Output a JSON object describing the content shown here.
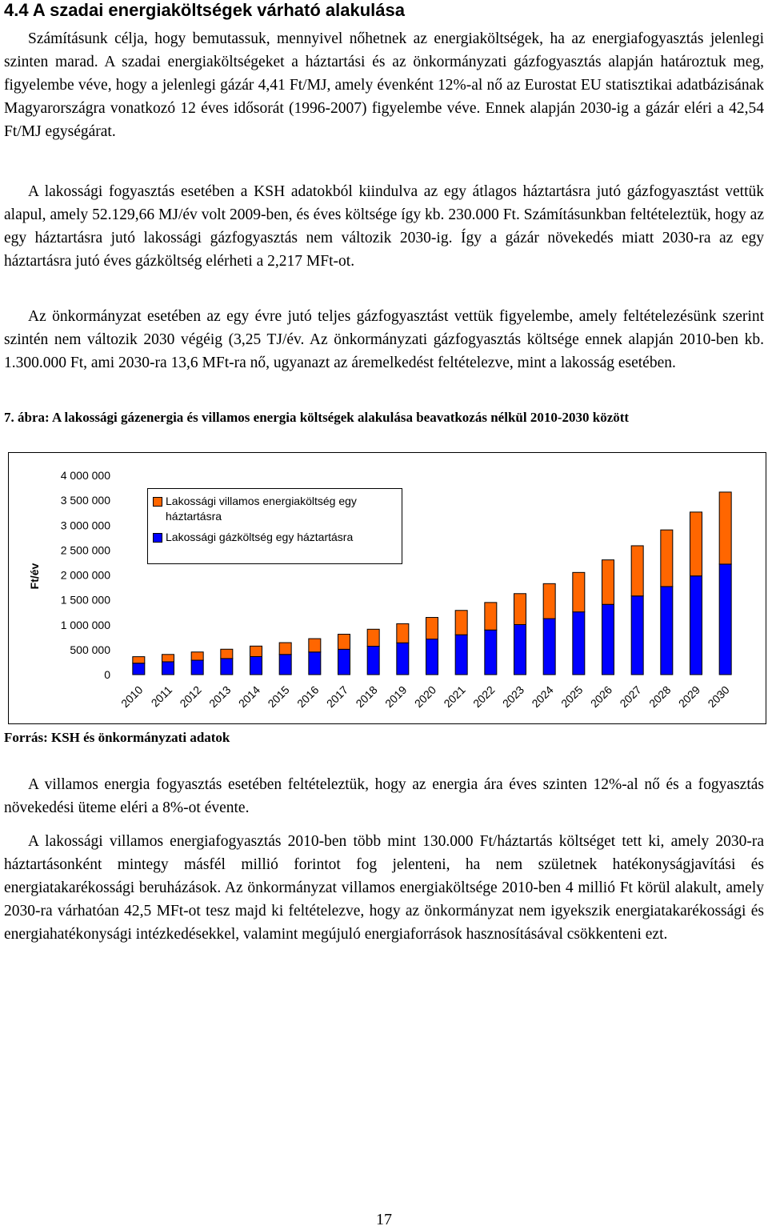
{
  "heading": "4.4 A szadai energiaköltségek várható alakulása",
  "paragraphs": [
    "Számításunk célja, hogy bemutassuk, mennyivel nőhetnek az energiaköltségek, ha az energiafogyasztás jelenlegi szinten marad. A szadai energiaköltségeket a háztartási és az önkormányzati gázfogyasztás alapján határoztuk meg, figyelembe véve, hogy a jelenlegi gázár 4,41 Ft/MJ, amely évenként 12%-al nő az Eurostat EU statisztikai adatbázisának Magyarországra vonatkozó 12 éves idősorát (1996-2007) figyelembe véve. Ennek alapján 2030-ig a gázár eléri a 42,54 Ft/MJ egységárat.",
    "A lakossági fogyasztás esetében a KSH adatokból kiindulva az egy átlagos háztartásra jutó gázfogyasztást vettük alapul, amely 52.129,66 MJ/év volt 2009-ben, és éves költsége így kb. 230.000 Ft. Számításunkban feltételeztük, hogy az egy háztartásra jutó lakossági gázfogyasztás nem változik 2030-ig. Így a gázár növekedés miatt 2030-ra az egy háztartásra jutó éves gázköltség elérheti a 2,217 MFt-ot.",
    "Az önkormányzat esetében az egy évre jutó teljes gázfogyasztást vettük figyelembe, amely feltételezésünk szerint szintén nem változik 2030 végéig (3,25 TJ/év. Az önkormányzati gázfogyasztás költsége ennek alapján 2010-ben kb. 1.300.000 Ft, ami 2030-ra 13,6 MFt-ra nő, ugyanazt az áremelkedést feltételezve, mint a lakosság esetében.",
    "A villamos energia fogyasztás esetében feltételeztük, hogy az energia ára éves szinten 12%-al nő és a fogyasztás növekedési üteme eléri a 8%-ot évente.",
    "A lakossági villamos energiafogyasztás 2010-ben több mint 130.000 Ft/háztartás költséget tett ki, amely 2030-ra háztartásonként mintegy másfél millió forintot fog jelenteni, ha nem születnek hatékonyságjavítási és energiatakarékossági beruházások. Az önkormányzat villamos energiaköltsége 2010-ben 4 millió Ft körül alakult, amely 2030-ra várhatóan 42,5 MFt-ot tesz majd ki feltételezve, hogy az önkormányzat nem igyekszik energiatakarékossági és energiahatékonysági intézkedésekkel, valamint megújuló energiaforrások hasznosításával csökkenteni ezt."
  ],
  "figure_caption": "7. ábra: A lakossági gázenergia és villamos energia költségek alakulása beavatkozás nélkül 2010-2030 között",
  "source": "Forrás: KSH és önkormányzati adatok",
  "page_number": "17",
  "chart_data": {
    "type": "stacked-bar",
    "y_label": "Ft/év",
    "categories": [
      "2010",
      "2011",
      "2012",
      "2013",
      "2014",
      "2015",
      "2016",
      "2017",
      "2018",
      "2019",
      "2020",
      "2021",
      "2022",
      "2023",
      "2024",
      "2025",
      "2026",
      "2027",
      "2028",
      "2029",
      "2030"
    ],
    "series": [
      {
        "name": "Lakossági gázköltség egy háztartásra",
        "color": "#0000ff",
        "values": [
          230000,
          258000,
          289000,
          323000,
          362000,
          405000,
          454000,
          509000,
          570000,
          638000,
          714000,
          800000,
          896000,
          1004000,
          1124000,
          1259000,
          1410000,
          1579000,
          1768000,
          1981000,
          2218000
        ]
      },
      {
        "name": "Lakossági villamos energiaköltség egy háztartásra",
        "color": "#ff6600",
        "values": [
          130000,
          147000,
          165000,
          187000,
          211000,
          237000,
          268000,
          302000,
          341000,
          384000,
          434000,
          489000,
          552000,
          622000,
          702000,
          792000,
          893000,
          1008000,
          1137000,
          1282000,
          1446000
        ]
      }
    ],
    "legend_order": [
      1,
      0
    ],
    "ylim": [
      0,
      4000000
    ],
    "yticks": [
      0,
      {
        "value": 500000,
        "label": "500 000"
      },
      {
        "value": 1000000,
        "label": "1 000 000"
      },
      {
        "value": 1500000,
        "label": "1 500 000"
      },
      {
        "value": 2000000,
        "label": "2 000 000"
      },
      {
        "value": 2500000,
        "label": "2 500 000"
      },
      {
        "value": 3000000,
        "label": "3 000 000"
      },
      {
        "value": 3500000,
        "label": "3 500 000"
      },
      {
        "value": 4000000,
        "label": "4 000 000"
      }
    ],
    "grid": false
  }
}
